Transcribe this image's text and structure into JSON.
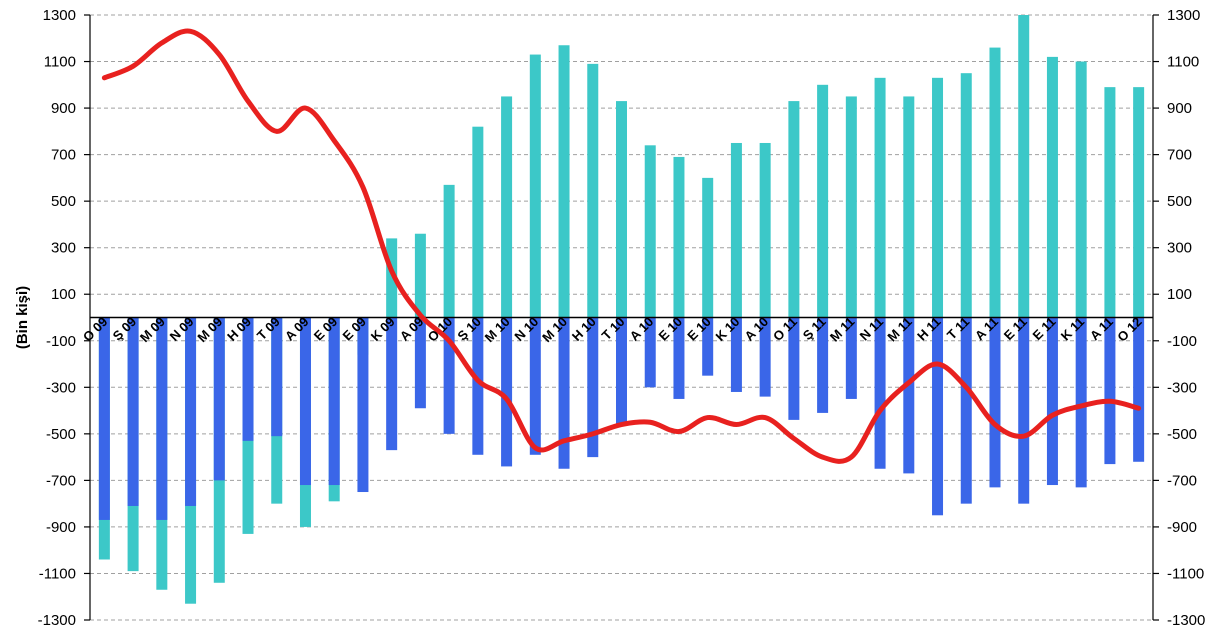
{
  "chart_data": {
    "type": "bar",
    "ylabel": "(Bin kişi)",
    "ylim": [
      -1300,
      1300
    ],
    "yticks": [
      1300,
      1100,
      900,
      700,
      500,
      300,
      100,
      -100,
      -300,
      -500,
      -700,
      -900,
      -1100,
      -1300
    ],
    "grid": true,
    "categories": [
      "O 09",
      "Ş 09",
      "M 09",
      "N 09",
      "M 09",
      "H 09",
      "T 09",
      "A 09",
      "E 09",
      "E 09",
      "K 09",
      "A 09",
      "O 10",
      "Ş 10",
      "M 10",
      "N 10",
      "M 10",
      "H 10",
      "T 10",
      "A 10",
      "E 10",
      "E 10",
      "K 10",
      "A 10",
      "O 11",
      "Ş 11",
      "M 11",
      "N 11",
      "M 11",
      "H 11",
      "T 11",
      "A 11",
      "E 11",
      "E 11",
      "K 11",
      "A 11",
      "O 12"
    ],
    "series": [
      {
        "kind": "bar",
        "color": "#3a66e8",
        "values": [
          -870,
          -810,
          -870,
          -810,
          -700,
          -530,
          -510,
          -720,
          -720,
          -750,
          -570,
          -390,
          -500,
          -590,
          -640,
          -590,
          -650,
          -600,
          -460,
          -300,
          -350,
          -250,
          -320,
          -340,
          -440,
          -410,
          -350,
          -650,
          -670,
          -850,
          -800,
          -730,
          -800,
          -720,
          -730,
          -630,
          -620
        ]
      },
      {
        "kind": "bar",
        "color": "#3cc8c8",
        "values": [
          -1040,
          -1090,
          -1170,
          -1230,
          -1140,
          -930,
          -800,
          -900,
          -790,
          -160,
          340,
          360,
          570,
          820,
          950,
          1130,
          1170,
          1090,
          930,
          740,
          690,
          600,
          750,
          750,
          930,
          1000,
          950,
          1030,
          950,
          1030,
          1050,
          1160,
          1300,
          1120,
          1100,
          990,
          990
        ]
      },
      {
        "kind": "line",
        "color": "#e8211f",
        "values": [
          1030,
          1080,
          1180,
          1230,
          1130,
          930,
          800,
          900,
          760,
          560,
          200,
          10,
          -100,
          -270,
          -350,
          -560,
          -530,
          -500,
          -460,
          -450,
          -490,
          -430,
          -460,
          -430,
          -520,
          -600,
          -600,
          -400,
          -280,
          -200,
          -300,
          -460,
          -510,
          -420,
          -380,
          -360,
          -390
        ]
      }
    ]
  }
}
